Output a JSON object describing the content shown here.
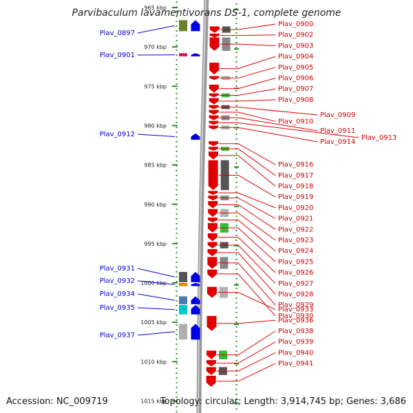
{
  "title": "Parvibaculum lavamentivorans DS-1, complete genome",
  "footer": {
    "accession": "Accession: NC_009719",
    "topology": "Topology: circular; Length: 3,914,745 bp; Genes: 3,686"
  },
  "colors": {
    "forward_gene": "#e00000",
    "reverse_gene": "#0000e0",
    "forward_label": "#cc0000",
    "reverse_label": "#0000cc",
    "ruler_dots": "#2a8a2a",
    "backbone": "#888888"
  },
  "ruler": {
    "unit": "kbp",
    "ticks": [
      {
        "kbp": 965,
        "label": "965 kbp"
      },
      {
        "kbp": 970,
        "label": "970 kbp"
      },
      {
        "kbp": 975,
        "label": "975 kbp"
      },
      {
        "kbp": 980,
        "label": "980 kbp"
      },
      {
        "kbp": 985,
        "label": "985 kbp"
      },
      {
        "kbp": 990,
        "label": "990 kbp"
      },
      {
        "kbp": 995,
        "label": "995 kbp"
      },
      {
        "kbp": 1000,
        "label": "1000 kbp"
      },
      {
        "kbp": 1005,
        "label": "1005 kbp"
      },
      {
        "kbp": 1010,
        "label": "1010 kbp"
      },
      {
        "kbp": 1015,
        "label": "1015 kbp"
      }
    ]
  },
  "reverse_genes": [
    {
      "name": "Plav_0897",
      "start": 966.6,
      "end": 968.0
    },
    {
      "name": "Plav_0901",
      "start": 970.8,
      "end": 971.2
    },
    {
      "name": "Plav_0912",
      "start": 981.0,
      "end": 981.8
    },
    {
      "name": "Plav_0931",
      "start": 998.6,
      "end": 999.9
    },
    {
      "name": "Plav_0932",
      "start": 1000.0,
      "end": 1000.4
    },
    {
      "name": "Plav_0934",
      "start": 1001.7,
      "end": 1002.7
    },
    {
      "name": "Plav_0935",
      "start": 1002.8,
      "end": 1004.0
    },
    {
      "name": "Plav_0937",
      "start": 1005.2,
      "end": 1007.2
    }
  ],
  "forward_genes": [
    {
      "name": "Plav_0900",
      "start": 967.4,
      "end": 968.2
    },
    {
      "name": "Plav_0902",
      "start": 968.3,
      "end": 968.8
    },
    {
      "name": "Plav_0903",
      "start": 968.8,
      "end": 970.5
    },
    {
      "name": "Plav_0904",
      "start": 972.0,
      "end": 973.5
    },
    {
      "name": "Plav_0905",
      "start": 973.7,
      "end": 974.2
    },
    {
      "name": "Plav_0906",
      "start": 974.8,
      "end": 975.8
    },
    {
      "name": "Plav_0907",
      "start": 975.9,
      "end": 976.4
    },
    {
      "name": "Plav_0908",
      "start": 976.5,
      "end": 977.3
    },
    {
      "name": "Plav_0909",
      "start": 977.4,
      "end": 977.9
    },
    {
      "name": "Plav_0910",
      "start": 978.0,
      "end": 978.6
    },
    {
      "name": "Plav_0911",
      "start": 978.7,
      "end": 979.3
    },
    {
      "name": "Plav_0913",
      "start": 979.4,
      "end": 979.9
    },
    {
      "name": "Plav_0914",
      "start": 980.0,
      "end": 980.5
    },
    {
      "name": "Plav_0916",
      "start": 982.0,
      "end": 982.6
    },
    {
      "name": "Plav_0917",
      "start": 982.7,
      "end": 983.2
    },
    {
      "name": "Plav_0918",
      "start": 983.3,
      "end": 984.3
    },
    {
      "name": "Plav_0919",
      "start": 984.4,
      "end": 988.2
    },
    {
      "name": "Plav_0920",
      "start": 988.3,
      "end": 988.8
    },
    {
      "name": "Plav_0921",
      "start": 988.9,
      "end": 989.5
    },
    {
      "name": "Plav_0922",
      "start": 989.6,
      "end": 990.5
    },
    {
      "name": "Plav_0923",
      "start": 990.6,
      "end": 991.6
    },
    {
      "name": "Plav_0924",
      "start": 991.7,
      "end": 992.3
    },
    {
      "name": "Plav_0925",
      "start": 992.4,
      "end": 993.6
    },
    {
      "name": "Plav_0926",
      "start": 993.7,
      "end": 994.7
    },
    {
      "name": "Plav_0927",
      "start": 994.8,
      "end": 995.6
    },
    {
      "name": "Plav_0928",
      "start": 995.7,
      "end": 996.6
    },
    {
      "name": "Plav_0929",
      "start": 996.7,
      "end": 998.2
    },
    {
      "name": "Plav_0930",
      "start": 998.3,
      "end": 999.4
    },
    {
      "name": "Plav_0933",
      "start": 1000.5,
      "end": 1001.9
    },
    {
      "name": "Plav_0936",
      "start": 1004.2,
      "end": 1006.1
    },
    {
      "name": "Plav_0938",
      "start": 1008.6,
      "end": 1009.7
    },
    {
      "name": "Plav_0939",
      "start": 1009.8,
      "end": 1010.6
    },
    {
      "name": "Plav_0940",
      "start": 1010.7,
      "end": 1011.7
    },
    {
      "name": "Plav_0941",
      "start": 1011.8,
      "end": 1013.2
    }
  ]
}
